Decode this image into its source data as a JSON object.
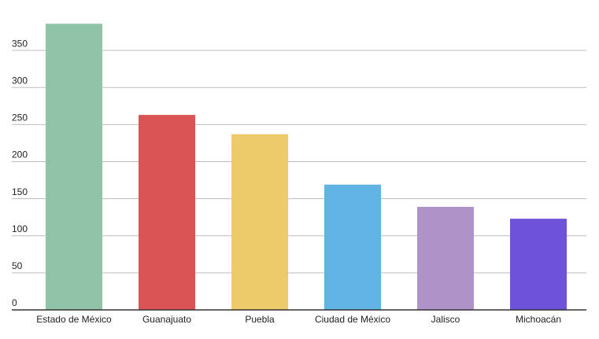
{
  "chart_data": {
    "type": "bar",
    "categories": [
      "Estado de México",
      "Guanajuato",
      "Puebla",
      "Ciudad de México",
      "Jalisco",
      "Michoacán"
    ],
    "values": [
      386,
      263,
      237,
      169,
      139,
      123
    ],
    "colors": [
      "#8fc4a8",
      "#dc5355",
      "#eecb6a",
      "#5fb4e4",
      "#ae93c9",
      "#6e52da"
    ],
    "ylim": [
      0,
      400
    ],
    "yticks": [
      0,
      50,
      100,
      150,
      200,
      250,
      300,
      350
    ],
    "grid": true
  }
}
